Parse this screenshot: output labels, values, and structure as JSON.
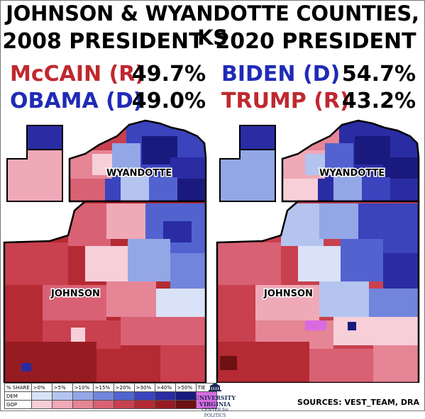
{
  "title": "JOHNSON & WYANDOTTE COUNTIES, KS",
  "left": {
    "heading": "2008 PRESIDENT",
    "cand1": {
      "name": "McCAIN (R)",
      "pct": "49.7%",
      "color": "#c0282f"
    },
    "cand2": {
      "name": "OBAMA (D)",
      "pct": "49.0%",
      "color": "#1f2bb7"
    },
    "county_north": "WYANDOTTE",
    "county_south": "JOHNSON"
  },
  "right": {
    "heading": "2020 PRESIDENT",
    "cand1": {
      "name": "BIDEN (D)",
      "pct": "54.7%",
      "color": "#1f2bb7"
    },
    "cand2": {
      "name": "TRUMP (R)",
      "pct": "43.2%",
      "color": "#c0282f"
    },
    "county_north": "WYANDOTTE",
    "county_south": "JOHNSON"
  },
  "legend": {
    "header": [
      "% SHARE",
      ">0%",
      ">5%",
      ">10%",
      ">15%",
      ">20%",
      ">30%",
      ">40%",
      ">50%",
      "TIE"
    ],
    "rows": [
      {
        "label": "DEM",
        "colors": [
          "#d9e2f7",
          "#b4c4ef",
          "#93a7e6",
          "#7285dc",
          "#5263d0",
          "#3b43bd",
          "#2a2ca3",
          "#1a1a7e"
        ]
      },
      {
        "label": "GOP",
        "colors": [
          "#f6cfd9",
          "#f0a9b7",
          "#e58595",
          "#d96174",
          "#c9404f",
          "#b52a33",
          "#971c22",
          "#6e1014"
        ]
      }
    ],
    "tie_color": "#d96be0"
  },
  "logo": {
    "line1": "UNIVERSITY",
    "line2": "VIRGINIA",
    "line3": "CENTER for POLITICS"
  },
  "sources": "SOURCES: VEST_TEAM, DRA"
}
